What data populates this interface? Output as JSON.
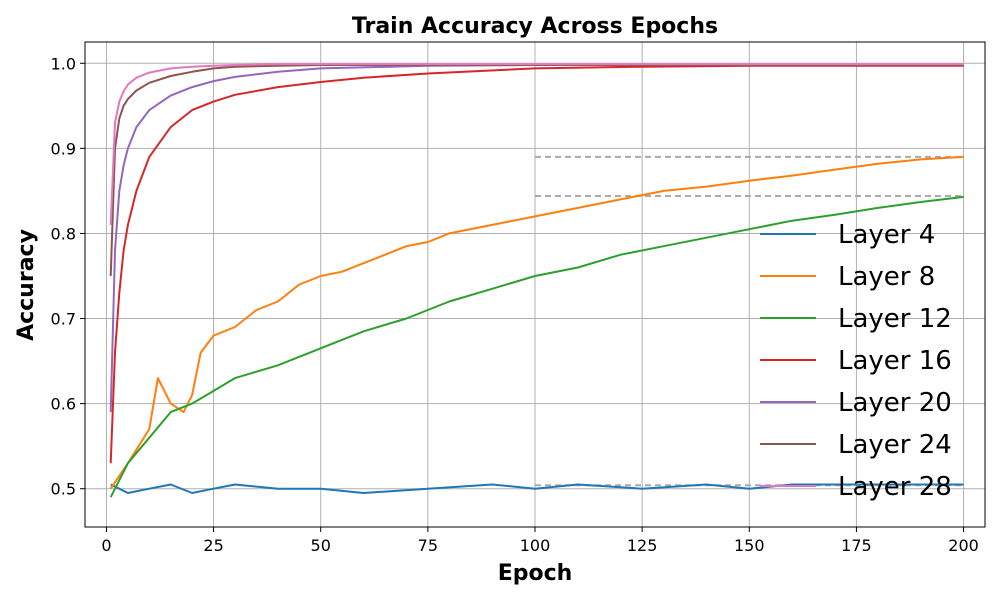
{
  "chart_data": {
    "type": "line",
    "title": "Train Accuracy Across Epochs",
    "xlabel": "Epoch",
    "ylabel": "Accuracy",
    "xlim": [
      -5,
      205
    ],
    "ylim": [
      0.455,
      1.025
    ],
    "xticks": [
      0,
      25,
      50,
      75,
      100,
      125,
      150,
      175,
      200
    ],
    "yticks": [
      0.5,
      0.6,
      0.7,
      0.8,
      0.9,
      1.0
    ],
    "ytick_labels": [
      "0.5",
      "0.6",
      "0.7",
      "0.8",
      "0.9",
      "1.0"
    ],
    "grid": true,
    "legend_position": "lower-right",
    "reference_lines": [
      {
        "y": 0.89,
        "x_range": [
          100,
          200
        ],
        "style": "dashed",
        "color": "#aaaaaa"
      },
      {
        "y": 0.844,
        "x_range": [
          100,
          200
        ],
        "style": "dashed",
        "color": "#aaaaaa"
      },
      {
        "y": 0.504,
        "x_range": [
          100,
          200
        ],
        "style": "dashed",
        "color": "#aaaaaa"
      },
      {
        "y": 0.998,
        "x_range": [
          100,
          200
        ],
        "style": "dashed",
        "color": "#aaaaaa"
      }
    ],
    "series": [
      {
        "name": "Layer 4",
        "color": "#1f77b4",
        "x": [
          1,
          5,
          10,
          15,
          20,
          25,
          30,
          40,
          50,
          60,
          75,
          90,
          100,
          110,
          125,
          140,
          150,
          160,
          175,
          190,
          200
        ],
        "y": [
          0.505,
          0.495,
          0.5,
          0.505,
          0.495,
          0.5,
          0.505,
          0.5,
          0.5,
          0.495,
          0.5,
          0.505,
          0.5,
          0.505,
          0.5,
          0.505,
          0.5,
          0.505,
          0.505,
          0.505,
          0.505
        ]
      },
      {
        "name": "Layer 8",
        "color": "#ff7f0e",
        "x": [
          1,
          5,
          10,
          12,
          15,
          18,
          20,
          22,
          25,
          30,
          35,
          40,
          45,
          50,
          55,
          60,
          65,
          70,
          75,
          80,
          90,
          100,
          110,
          120,
          130,
          140,
          150,
          160,
          170,
          180,
          190,
          200
        ],
        "y": [
          0.5,
          0.53,
          0.57,
          0.63,
          0.6,
          0.59,
          0.61,
          0.66,
          0.68,
          0.69,
          0.71,
          0.72,
          0.74,
          0.75,
          0.755,
          0.765,
          0.775,
          0.785,
          0.79,
          0.8,
          0.81,
          0.82,
          0.83,
          0.84,
          0.85,
          0.855,
          0.862,
          0.868,
          0.875,
          0.882,
          0.887,
          0.89
        ]
      },
      {
        "name": "Layer 12",
        "color": "#2ca02c",
        "x": [
          1,
          5,
          10,
          15,
          20,
          25,
          30,
          40,
          50,
          60,
          70,
          80,
          90,
          100,
          110,
          120,
          130,
          140,
          150,
          160,
          170,
          180,
          190,
          200
        ],
        "y": [
          0.49,
          0.53,
          0.56,
          0.59,
          0.6,
          0.615,
          0.63,
          0.645,
          0.665,
          0.685,
          0.7,
          0.72,
          0.735,
          0.75,
          0.76,
          0.775,
          0.785,
          0.795,
          0.805,
          0.815,
          0.822,
          0.83,
          0.837,
          0.843
        ]
      },
      {
        "name": "Layer 16",
        "color": "#d62728",
        "x": [
          1,
          2,
          3,
          4,
          5,
          7,
          10,
          15,
          20,
          25,
          30,
          40,
          50,
          60,
          75,
          100,
          125,
          150,
          175,
          200
        ],
        "y": [
          0.53,
          0.66,
          0.73,
          0.78,
          0.81,
          0.85,
          0.89,
          0.925,
          0.945,
          0.955,
          0.963,
          0.972,
          0.978,
          0.983,
          0.988,
          0.994,
          0.996,
          0.997,
          0.997,
          0.997
        ]
      },
      {
        "name": "Layer 20",
        "color": "#9467bd",
        "x": [
          1,
          2,
          3,
          4,
          5,
          7,
          10,
          15,
          20,
          25,
          30,
          40,
          50,
          75,
          100,
          150,
          200
        ],
        "y": [
          0.59,
          0.78,
          0.85,
          0.88,
          0.9,
          0.925,
          0.945,
          0.962,
          0.972,
          0.979,
          0.984,
          0.99,
          0.994,
          0.997,
          0.998,
          0.998,
          0.998
        ]
      },
      {
        "name": "Layer 24",
        "color": "#8c564b",
        "x": [
          1,
          2,
          3,
          4,
          5,
          7,
          10,
          15,
          20,
          25,
          30,
          40,
          50,
          75,
          100,
          150,
          200
        ],
        "y": [
          0.75,
          0.9,
          0.935,
          0.95,
          0.958,
          0.968,
          0.977,
          0.985,
          0.99,
          0.994,
          0.996,
          0.997,
          0.998,
          0.998,
          0.998,
          0.998,
          0.998
        ]
      },
      {
        "name": "Layer 28",
        "color": "#e377c2",
        "x": [
          1,
          2,
          3,
          4,
          5,
          7,
          10,
          15,
          20,
          25,
          30,
          40,
          50,
          75,
          100,
          150,
          200
        ],
        "y": [
          0.81,
          0.93,
          0.955,
          0.967,
          0.975,
          0.983,
          0.989,
          0.994,
          0.996,
          0.997,
          0.998,
          0.999,
          0.999,
          0.999,
          0.999,
          0.999,
          0.999
        ]
      }
    ]
  }
}
